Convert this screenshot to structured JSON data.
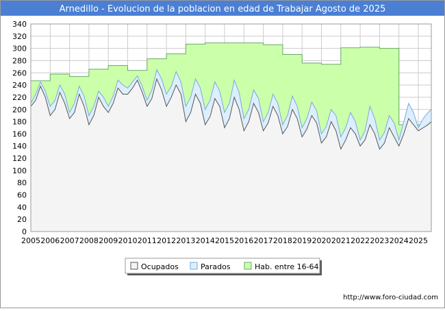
{
  "chart_data": {
    "type": "area",
    "title": "Arnedillo - Evolucion de la poblacion en edad de Trabajar Agosto de 2025",
    "xlabel": "",
    "ylabel": "",
    "ylim": [
      0,
      340
    ],
    "xlim": [
      2005,
      2025.67
    ],
    "yticks": [
      0,
      20,
      40,
      60,
      80,
      100,
      120,
      140,
      160,
      180,
      200,
      220,
      240,
      260,
      280,
      300,
      320,
      340
    ],
    "xticks": [
      "2005",
      "2006",
      "2007",
      "2008",
      "2009",
      "2010",
      "2011",
      "2012",
      "2013",
      "2014",
      "2015",
      "2016",
      "2017",
      "2018",
      "2019",
      "2020",
      "2021",
      "2022",
      "2023",
      "2024",
      "2025"
    ],
    "grid": true,
    "legend_position": "bottom",
    "series": [
      {
        "name": "Hab. entre 16-64",
        "color": "#ccffaa",
        "line_color": "#66aa66",
        "step": true,
        "x": [
          2005,
          2006,
          2007,
          2008,
          2009,
          2010,
          2011,
          2012,
          2013,
          2014,
          2015,
          2016,
          2017,
          2018,
          2019,
          2020,
          2021,
          2022,
          2023,
          2024
        ],
        "values": [
          247,
          258,
          254,
          266,
          272,
          264,
          283,
          291,
          307,
          309,
          309,
          309,
          306,
          290,
          276,
          274,
          301,
          302,
          300,
          175
        ]
      },
      {
        "name": "Parados",
        "color": "#ddeeff",
        "line_color": "#77aadd",
        "x": [
          2005.0,
          2005.25,
          2005.5,
          2005.75,
          2006.0,
          2006.25,
          2006.5,
          2006.75,
          2007.0,
          2007.25,
          2007.5,
          2007.75,
          2008.0,
          2008.25,
          2008.5,
          2008.75,
          2009.0,
          2009.25,
          2009.5,
          2009.75,
          2010.0,
          2010.25,
          2010.5,
          2010.75,
          2011.0,
          2011.25,
          2011.5,
          2011.75,
          2012.0,
          2012.25,
          2012.5,
          2012.75,
          2013.0,
          2013.25,
          2013.5,
          2013.75,
          2014.0,
          2014.25,
          2014.5,
          2014.75,
          2015.0,
          2015.25,
          2015.5,
          2015.75,
          2016.0,
          2016.25,
          2016.5,
          2016.75,
          2017.0,
          2017.25,
          2017.5,
          2017.75,
          2018.0,
          2018.25,
          2018.5,
          2018.75,
          2019.0,
          2019.25,
          2019.5,
          2019.75,
          2020.0,
          2020.25,
          2020.5,
          2020.75,
          2021.0,
          2021.25,
          2021.5,
          2021.75,
          2022.0,
          2022.25,
          2022.5,
          2022.75,
          2023.0,
          2023.25,
          2023.5,
          2023.75,
          2024.0,
          2024.25,
          2024.5,
          2024.75,
          2025.0,
          2025.25,
          2025.5,
          2025.67
        ],
        "values": [
          210,
          225,
          245,
          230,
          205,
          215,
          240,
          225,
          195,
          210,
          238,
          222,
          190,
          205,
          230,
          220,
          205,
          222,
          248,
          240,
          235,
          245,
          255,
          238,
          215,
          232,
          265,
          250,
          225,
          238,
          262,
          245,
          205,
          220,
          250,
          235,
          200,
          215,
          245,
          230,
          195,
          210,
          248,
          228,
          185,
          200,
          232,
          218,
          180,
          195,
          225,
          210,
          175,
          190,
          222,
          205,
          170,
          185,
          212,
          198,
          160,
          172,
          200,
          190,
          155,
          170,
          195,
          180,
          150,
          165,
          205,
          185,
          150,
          162,
          190,
          178,
          150,
          180,
          210,
          195,
          170,
          185,
          195,
          200
        ]
      },
      {
        "name": "Ocupados",
        "color": "#f4f4f4",
        "line_color": "#555555",
        "x": [
          2005.0,
          2005.25,
          2005.5,
          2005.75,
          2006.0,
          2006.25,
          2006.5,
          2006.75,
          2007.0,
          2007.25,
          2007.5,
          2007.75,
          2008.0,
          2008.25,
          2008.5,
          2008.75,
          2009.0,
          2009.25,
          2009.5,
          2009.75,
          2010.0,
          2010.25,
          2010.5,
          2010.75,
          2011.0,
          2011.25,
          2011.5,
          2011.75,
          2012.0,
          2012.25,
          2012.5,
          2012.75,
          2013.0,
          2013.25,
          2013.5,
          2013.75,
          2014.0,
          2014.25,
          2014.5,
          2014.75,
          2015.0,
          2015.25,
          2015.5,
          2015.75,
          2016.0,
          2016.25,
          2016.5,
          2016.75,
          2017.0,
          2017.25,
          2017.5,
          2017.75,
          2018.0,
          2018.25,
          2018.5,
          2018.75,
          2019.0,
          2019.25,
          2019.5,
          2019.75,
          2020.0,
          2020.25,
          2020.5,
          2020.75,
          2021.0,
          2021.25,
          2021.5,
          2021.75,
          2022.0,
          2022.25,
          2022.5,
          2022.75,
          2023.0,
          2023.25,
          2023.5,
          2023.75,
          2024.0,
          2024.25,
          2024.5,
          2024.75,
          2025.0,
          2025.25,
          2025.5,
          2025.67
        ],
        "values": [
          205,
          215,
          238,
          220,
          190,
          200,
          228,
          210,
          185,
          195,
          225,
          205,
          175,
          190,
          220,
          205,
          195,
          210,
          235,
          225,
          225,
          235,
          248,
          228,
          205,
          218,
          250,
          232,
          205,
          220,
          240,
          225,
          180,
          195,
          225,
          210,
          175,
          188,
          218,
          205,
          170,
          185,
          220,
          200,
          165,
          180,
          210,
          195,
          165,
          178,
          205,
          190,
          160,
          172,
          200,
          185,
          155,
          168,
          190,
          178,
          145,
          155,
          180,
          165,
          135,
          150,
          170,
          160,
          140,
          150,
          175,
          160,
          135,
          145,
          170,
          155,
          140,
          160,
          185,
          175,
          165,
          170,
          175,
          180
        ]
      }
    ]
  },
  "legend": {
    "items": [
      {
        "label": "Ocupados",
        "color": "#f4f4f4"
      },
      {
        "label": "Parados",
        "color": "#ddeeff"
      },
      {
        "label": "Hab. entre 16-64",
        "color": "#ccffaa"
      }
    ]
  },
  "footer": {
    "url": "http://www.foro-ciudad.com"
  },
  "colors": {
    "title_bar": "#4a7fd4",
    "title_text": "#ffffff",
    "grid": "#cccccc",
    "plot_bg": "#ffffff"
  }
}
